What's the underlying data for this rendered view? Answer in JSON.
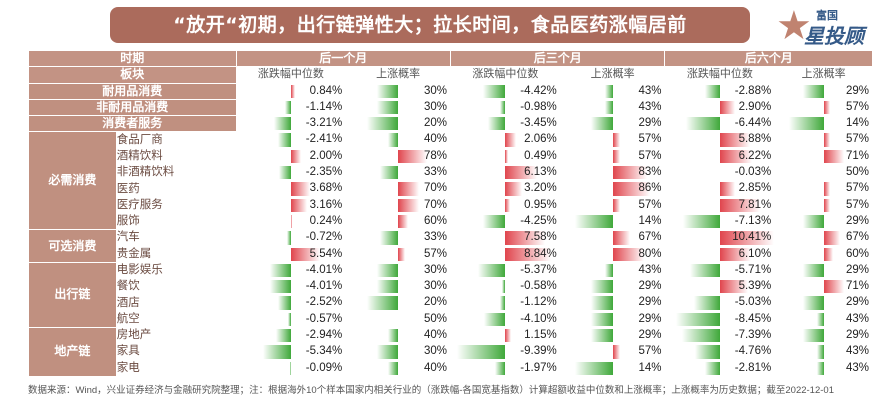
{
  "title": "“放开“初期，出行链弹性大；拉长时间，食品医药涨幅居前",
  "logo": {
    "top": "富国",
    "main": "星投顾"
  },
  "headers": {
    "period_label": "时期",
    "sector_label": "板块",
    "periods": [
      "后一个月",
      "后三个月",
      "后六个月"
    ],
    "med_label": "涨跌幅中位数",
    "prob_label": "上涨概率"
  },
  "colors": {
    "neg": "#3fa83a",
    "pos": "#e0454d",
    "sector_bg": "#c09080",
    "header_bg": "#c39384",
    "title_bg": "#ab6b5c"
  },
  "rows": [
    {
      "sector": "耐用品消费",
      "industry": "",
      "m1": "0.84%",
      "p1": "30%",
      "m3": "-4.42%",
      "p3": "43%",
      "m6": "-2.88%",
      "p6": "29%"
    },
    {
      "sector": "非耐用品消费",
      "industry": "",
      "m1": "-1.14%",
      "p1": "30%",
      "m3": "-0.98%",
      "p3": "43%",
      "m6": "2.90%",
      "p6": "57%"
    },
    {
      "sector": "消费者服务",
      "industry": "",
      "m1": "-3.21%",
      "p1": "20%",
      "m3": "-3.45%",
      "p3": "29%",
      "m6": "-6.44%",
      "p6": "14%"
    },
    {
      "sector": "必需消费",
      "industry": "食品厂商",
      "m1": "-2.41%",
      "p1": "40%",
      "m3": "2.06%",
      "p3": "57%",
      "m6": "5.88%",
      "p6": "57%"
    },
    {
      "sector": "必需消费",
      "industry": "酒精饮料",
      "m1": "2.00%",
      "p1": "78%",
      "m3": "0.49%",
      "p3": "57%",
      "m6": "6.22%",
      "p6": "71%"
    },
    {
      "sector": "必需消费",
      "industry": "非酒精饮料",
      "m1": "-2.35%",
      "p1": "33%",
      "m3": "6.13%",
      "p3": "83%",
      "m6": "-0.03%",
      "p6": "50%"
    },
    {
      "sector": "必需消费",
      "industry": "医药",
      "m1": "3.68%",
      "p1": "70%",
      "m3": "3.20%",
      "p3": "86%",
      "m6": "2.85%",
      "p6": "57%"
    },
    {
      "sector": "必需消费",
      "industry": "医疗服务",
      "m1": "3.16%",
      "p1": "70%",
      "m3": "0.95%",
      "p3": "57%",
      "m6": "7.81%",
      "p6": "57%"
    },
    {
      "sector": "必需消费",
      "industry": "服饰",
      "m1": "0.24%",
      "p1": "60%",
      "m3": "-4.25%",
      "p3": "14%",
      "m6": "-7.13%",
      "p6": "29%"
    },
    {
      "sector": "可选消费",
      "industry": "汽车",
      "m1": "-0.72%",
      "p1": "33%",
      "m3": "7.58%",
      "p3": "67%",
      "m6": "10.41%",
      "p6": "67%"
    },
    {
      "sector": "可选消费",
      "industry": "贵金属",
      "m1": "5.54%",
      "p1": "57%",
      "m3": "8.84%",
      "p3": "80%",
      "m6": "6.10%",
      "p6": "60%"
    },
    {
      "sector": "出行链",
      "industry": "电影娱乐",
      "m1": "-4.01%",
      "p1": "30%",
      "m3": "-5.37%",
      "p3": "43%",
      "m6": "-5.71%",
      "p6": "29%"
    },
    {
      "sector": "出行链",
      "industry": "餐饮",
      "m1": "-4.01%",
      "p1": "30%",
      "m3": "-0.58%",
      "p3": "29%",
      "m6": "5.39%",
      "p6": "71%"
    },
    {
      "sector": "出行链",
      "industry": "酒店",
      "m1": "-2.52%",
      "p1": "20%",
      "m3": "-1.12%",
      "p3": "29%",
      "m6": "-5.03%",
      "p6": "29%"
    },
    {
      "sector": "出行链",
      "industry": "航空",
      "m1": "-0.57%",
      "p1": "50%",
      "m3": "-4.10%",
      "p3": "29%",
      "m6": "-8.45%",
      "p6": "43%"
    },
    {
      "sector": "地产链",
      "industry": "房地产",
      "m1": "-2.94%",
      "p1": "40%",
      "m3": "1.15%",
      "p3": "29%",
      "m6": "-7.39%",
      "p6": "29%"
    },
    {
      "sector": "地产链",
      "industry": "家具",
      "m1": "-5.34%",
      "p1": "30%",
      "m3": "-9.39%",
      "p3": "57%",
      "m6": "-4.76%",
      "p6": "43%"
    },
    {
      "sector": "地产链",
      "industry": "家电",
      "m1": "-0.09%",
      "p1": "40%",
      "m3": "-1.97%",
      "p3": "14%",
      "m6": "-2.81%",
      "p6": "43%"
    }
  ],
  "source": "数据来源：Wind，兴业证券经济与金融研究院整理；注：根据海外10个样本国家内相关行业的（涨跌幅-各国宽基指数）计算超额收益中位数和上涨概率；上涨概率为历史数据；截至2022-12-01"
}
